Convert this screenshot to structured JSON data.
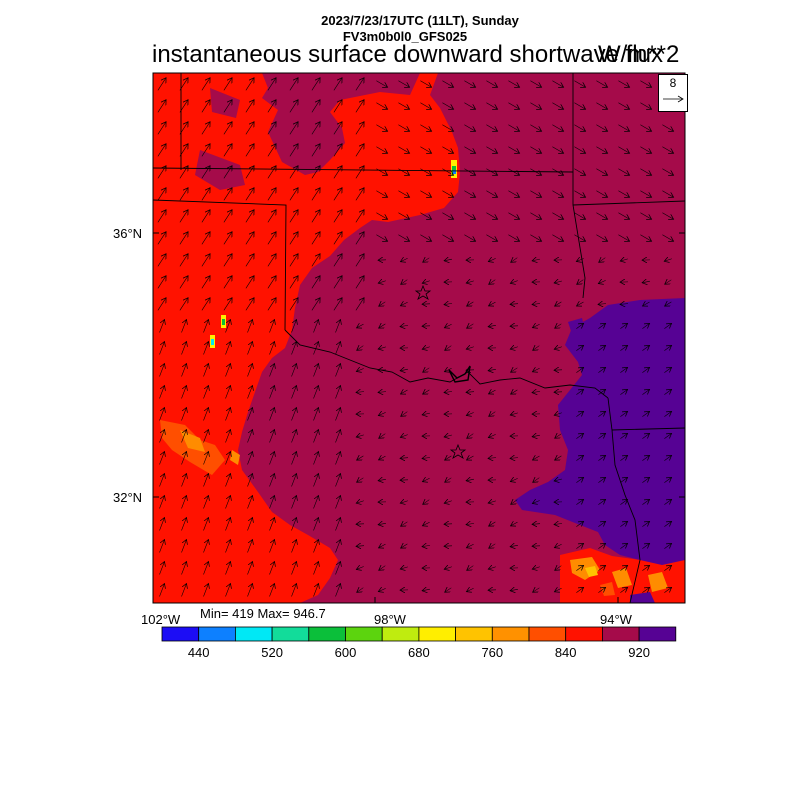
{
  "header": {
    "datetime": "2023/7/23/17UTC (11LT), Sunday",
    "model": "FV3m0b0l0_GFS025",
    "title": "instantaneous surface downward shortwave flux",
    "units": "W/m**2"
  },
  "map": {
    "lat_labels": [
      "36°N",
      "32°N"
    ],
    "lon_labels": [
      "102°W",
      "98°W",
      "94°W"
    ],
    "stats": "Min= 419 Max= 946.7",
    "vector_reference": "8",
    "colors": {
      "red": "#ff1200",
      "crimson": "#a50b4a",
      "purple": "#560294",
      "orange": "#ff8c00",
      "yellow": "#ffe800"
    }
  },
  "colorbar": {
    "labels": [
      "440",
      "520",
      "600",
      "680",
      "760",
      "840",
      "920"
    ],
    "colors": [
      "#1c0df5",
      "#0d80ff",
      "#00e8f5",
      "#12dc9a",
      "#0bbf3a",
      "#5cd40e",
      "#bfec0f",
      "#ffee00",
      "#ffc300",
      "#ff9100",
      "#ff4f00",
      "#ff1200",
      "#a50b4a",
      "#560294"
    ]
  }
}
